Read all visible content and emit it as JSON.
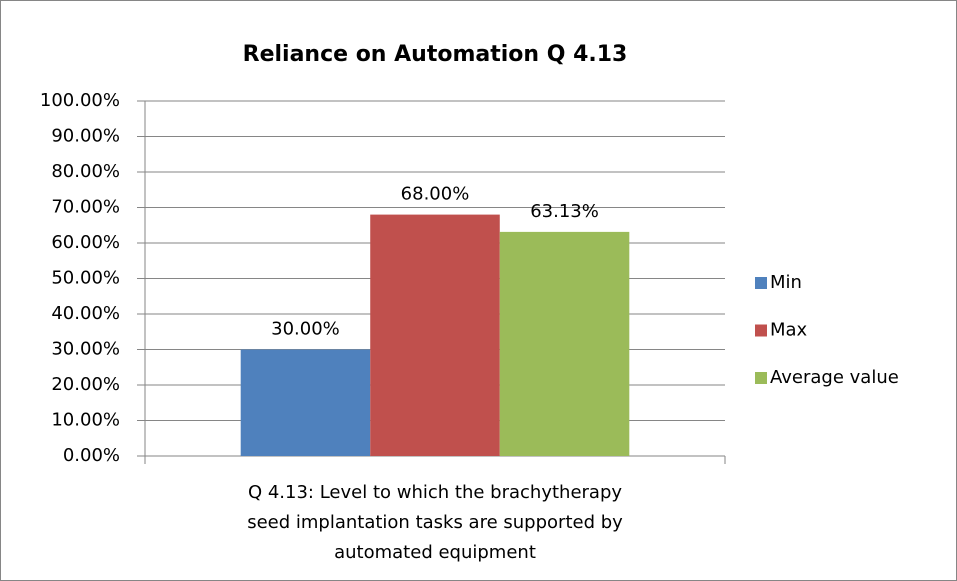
{
  "chart_data": {
    "type": "bar",
    "title": "Reliance on Automation Q 4.13",
    "categories": [
      "Q 4.13: Level to which the brachytherapy seed implantation tasks are supported by automated equipment"
    ],
    "series": [
      {
        "name": "Min",
        "color": "#4f81bd",
        "values": [
          30
        ],
        "value_labels": [
          "30.00%"
        ]
      },
      {
        "name": "Max",
        "color": "#c0504d",
        "values": [
          68
        ],
        "value_labels": [
          "68.00%"
        ]
      },
      {
        "name": "Average value",
        "color": "#9bbb59",
        "values": [
          63.13
        ],
        "value_labels": [
          "63.13%"
        ]
      }
    ],
    "ylim": [
      0,
      100
    ],
    "yticks": [
      {
        "value": 0,
        "label": "0.00%"
      },
      {
        "value": 10,
        "label": "10.00%"
      },
      {
        "value": 20,
        "label": "20.00%"
      },
      {
        "value": 30,
        "label": "30.00%"
      },
      {
        "value": 40,
        "label": "40.00%"
      },
      {
        "value": 50,
        "label": "50.00%"
      },
      {
        "value": 60,
        "label": "60.00%"
      },
      {
        "value": 70,
        "label": "70.00%"
      },
      {
        "value": 80,
        "label": "80.00%"
      },
      {
        "value": 90,
        "label": "90.00%"
      },
      {
        "value": 100,
        "label": "100.00%"
      }
    ],
    "grid": true,
    "legend": "right"
  }
}
